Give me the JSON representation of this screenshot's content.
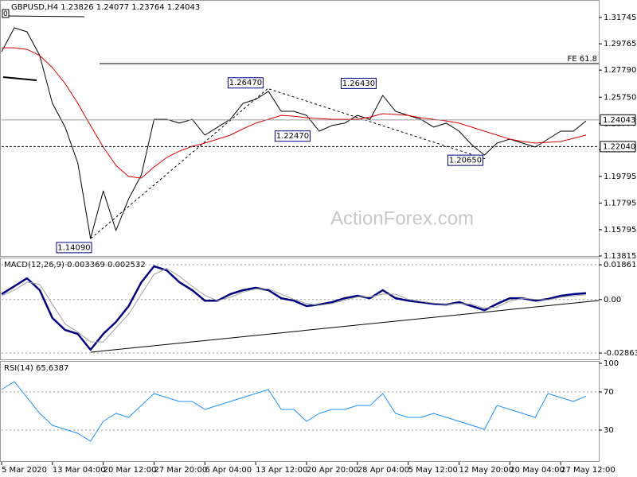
{
  "chart_data": [
    {
      "type": "line",
      "title": "GBPUSD,H4  1.23826 1.24077 1.23764 1.24043",
      "corner_label": "0",
      "watermark": "ActionForex.com",
      "x": [
        0,
        1,
        2,
        3,
        4,
        5,
        6,
        7,
        8,
        9,
        10,
        11,
        12,
        13,
        14,
        15,
        16,
        17,
        18,
        19,
        20,
        21,
        22,
        23,
        24,
        25,
        26,
        27,
        28,
        29,
        30,
        31,
        32,
        33,
        34,
        35,
        36,
        37,
        38,
        39,
        40,
        41,
        42,
        43,
        44,
        45,
        46
      ],
      "xlim": [
        0,
        47
      ],
      "ylim": [
        1.13815,
        1.3276
      ],
      "yticks": [
        1.31745,
        1.29765,
        {
          "value": 1.2779,
          "label": "1.27790"
        },
        {
          "value": 1.2575,
          "label": "1.25750"
        },
        {
          "value": 1.2377,
          "label": "1.23770"
        },
        {
          "value": 1.2179,
          "label": "1.21790"
        },
        1.19795,
        1.17795,
        1.15795,
        1.13815
      ],
      "series": [
        {
          "color": "#000000",
          "values": [
            1.2917,
            1.3097,
            1.3067,
            1.2888,
            1.2529,
            1.235,
            1.2081,
            1.1513,
            1.1871,
            1.1573,
            1.1812,
            1.1991,
            1.2409,
            1.2409,
            1.238,
            1.2409,
            1.229,
            1.235,
            1.2409,
            1.2529,
            1.2559,
            1.2619,
            1.2469,
            1.2469,
            1.2439,
            1.232,
            1.2362,
            1.238,
            1.2439,
            1.2409,
            1.2589,
            1.2469,
            1.2439,
            1.2409,
            1.235,
            1.238,
            1.232,
            1.2218,
            1.214,
            1.223,
            1.226,
            1.223,
            1.22,
            1.226,
            1.232,
            1.232,
            1.2397
          ]
        },
        {
          "color": "#e00000",
          "values": [
            1.2947,
            1.2947,
            1.2935,
            1.2888,
            1.2798,
            1.2678,
            1.2529,
            1.2362,
            1.22,
            1.2063,
            1.1979,
            1.1967,
            1.2051,
            1.2122,
            1.217,
            1.2206,
            1.223,
            1.226,
            1.229,
            1.2338,
            1.238,
            1.2409,
            1.2439,
            1.2433,
            1.2421,
            1.2415,
            1.2409,
            1.2409,
            1.2409,
            1.2427,
            1.2451,
            1.2445,
            1.2439,
            1.2421,
            1.2409,
            1.2397,
            1.238,
            1.235,
            1.232,
            1.229,
            1.226,
            1.2242,
            1.223,
            1.2236,
            1.2242,
            1.2266,
            1.229
          ]
        }
      ],
      "annotations": [
        {
          "x": 5.7,
          "y": 1.1409,
          "label": "1.14090"
        },
        {
          "x": 19.2,
          "y": 1.2647,
          "label": "1.26470"
        },
        {
          "x": 22.9,
          "y": 1.2247,
          "label": "1.22470"
        },
        {
          "x": 28.1,
          "y": 1.2643,
          "label": "1.26430"
        },
        {
          "x": 36.5,
          "y": 1.2065,
          "label": "1.20650"
        }
      ],
      "price_levels": [
        1.24043,
        {
          "value": 1.2204,
          "label": "1.22040"
        }
      ],
      "fe_level": {
        "value": 1.2828,
        "label": "FE 61.8"
      }
    },
    {
      "type": "line",
      "title": "MACD(12,26,9) 0.003369 0.002532",
      "x": [
        0,
        1,
        2,
        3,
        4,
        5,
        6,
        7,
        8,
        9,
        10,
        11,
        12,
        13,
        14,
        15,
        16,
        17,
        18,
        19,
        20,
        21,
        22,
        23,
        24,
        25,
        26,
        27,
        28,
        29,
        30,
        31,
        32,
        33,
        34,
        35,
        36,
        37,
        38,
        39,
        40,
        41,
        42,
        43,
        44,
        45,
        46
      ],
      "xlim": [
        0,
        47
      ],
      "ylim": [
        -0.032,
        0.0216
      ],
      "yticks": [
        0.018615,
        {
          "value": 0,
          "label": "0.00"
        },
        -0.028631
      ],
      "series": [
        {
          "color": "#000080",
          "values": [
            0.0029,
            0.0071,
            0.0114,
            0.005,
            -0.0099,
            -0.0163,
            -0.0184,
            -0.0269,
            -0.0184,
            -0.012,
            -0.0035,
            0.0092,
            0.0178,
            0.0156,
            0.0092,
            0.005,
            -0.0006,
            -0.0006,
            0.0029,
            0.005,
            0.0063,
            0.005,
            0.0007,
            -0.0006,
            -0.0035,
            -0.0027,
            -0.0014,
            0.0007,
            0.002,
            0.0007,
            0.005,
            0.0007,
            -0.0006,
            -0.0014,
            -0.0023,
            -0.0027,
            -0.0014,
            -0.0035,
            -0.0057,
            -0.0023,
            0.0007,
            0.0007,
            -0.0006,
            0.0003,
            0.002,
            0.0029,
            0.0034
          ]
        },
        {
          "color": "#a0a0a0",
          "values": [
            0.002,
            0.005,
            0.0093,
            0.0082,
            -0.0025,
            -0.0131,
            -0.0174,
            -0.0227,
            -0.0227,
            -0.0152,
            -0.0078,
            0.0029,
            0.0135,
            0.0167,
            0.0124,
            0.0071,
            0.0022,
            -0.0006,
            0.0012,
            0.004,
            0.0057,
            0.0057,
            0.0029,
            0.0001,
            -0.0021,
            -0.0031,
            -0.0021,
            -0.0004,
            0.0014,
            0.0014,
            0.0029,
            0.0029,
            0.0001,
            -0.001,
            -0.0019,
            -0.0025,
            -0.0021,
            -0.0025,
            -0.0046,
            -0.004,
            -0.0008,
            0.0007,
            0.0001,
            -0.0002,
            0.0012,
            0.002,
            0.0025
          ]
        }
      ]
    },
    {
      "type": "line",
      "title": "RSI(14) 65.6387",
      "x": [
        0,
        1,
        2,
        3,
        4,
        5,
        6,
        7,
        8,
        9,
        10,
        11,
        12,
        13,
        14,
        15,
        16,
        17,
        18,
        19,
        20,
        21,
        22,
        23,
        24,
        25,
        26,
        27,
        28,
        29,
        30,
        31,
        32,
        33,
        34,
        35,
        36,
        37,
        38,
        39,
        40,
        41,
        42,
        43,
        44,
        45,
        46
      ],
      "xlim": [
        0,
        47
      ],
      "ylim": [
        0,
        100
      ],
      "yticks": [
        100,
        70,
        30
      ],
      "xticks": [
        {
          "value": 0,
          "label": "5 Mar 2020"
        },
        {
          "value": 4,
          "label": "13 Mar 04:00"
        },
        {
          "value": 8,
          "label": "20 Mar 12:00"
        },
        {
          "value": 12,
          "label": "27 Mar 20:00"
        },
        {
          "value": 16,
          "label": "6 Apr 04:00"
        },
        {
          "value": 20,
          "label": "13 Apr 12:00"
        },
        {
          "value": 24,
          "label": "20 Apr 20:00"
        },
        {
          "value": 28,
          "label": "28 Apr 04:00"
        },
        {
          "value": 32,
          "label": "5 May 12:00"
        },
        {
          "value": 36,
          "label": "12 May 20:00"
        },
        {
          "value": 40,
          "label": "20 May 04:00"
        },
        {
          "value": 44,
          "label": "27 May 12:00"
        }
      ],
      "series": [
        {
          "color": "#1e90ff",
          "values": [
            72.5,
            80.8,
            64.2,
            47.5,
            35.0,
            30.8,
            26.7,
            18.3,
            39.2,
            47.5,
            43.3,
            55.8,
            68.3,
            64.2,
            60.0,
            60.0,
            51.7,
            55.8,
            60.0,
            64.2,
            68.3,
            72.5,
            51.7,
            51.7,
            39.2,
            47.5,
            51.7,
            51.7,
            55.8,
            55.8,
            68.3,
            47.5,
            43.3,
            43.3,
            47.5,
            43.3,
            39.2,
            35.0,
            30.8,
            55.8,
            51.7,
            47.5,
            43.3,
            68.3,
            64.2,
            60.0,
            65.6
          ]
        }
      ]
    }
  ]
}
